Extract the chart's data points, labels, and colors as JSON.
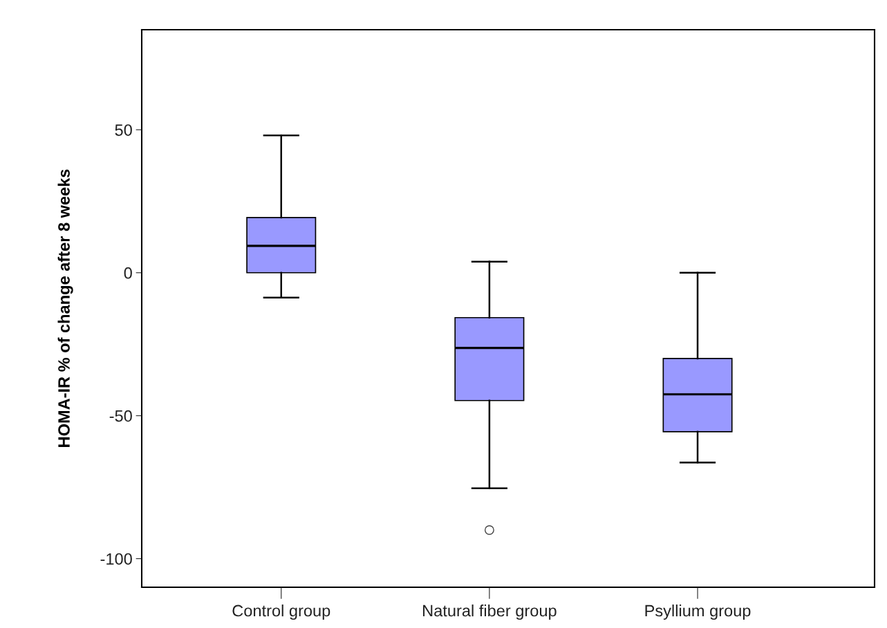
{
  "chart_data": {
    "type": "box",
    "ylabel": "HOMA-IR % of change after 8 weeks",
    "categories": [
      "Control group",
      "Natural fiber group",
      "Psyllium group"
    ],
    "color": "#9999ff",
    "boxes": [
      {
        "low": -8.7,
        "q1": 0,
        "median": 9.4,
        "q3": 19.3,
        "high": 48
      },
      {
        "low": -75.4,
        "q1": -44.7,
        "median": -26.3,
        "q3": -15.7,
        "high": 3.9,
        "outliers": [
          -90
        ]
      },
      {
        "low": -66.4,
        "q1": -55.6,
        "median": -42.5,
        "q3": -30,
        "high": 0
      }
    ],
    "ylim": [
      -110,
      85
    ],
    "yticks": [
      -100,
      -50,
      0,
      50
    ],
    "grid": false
  }
}
